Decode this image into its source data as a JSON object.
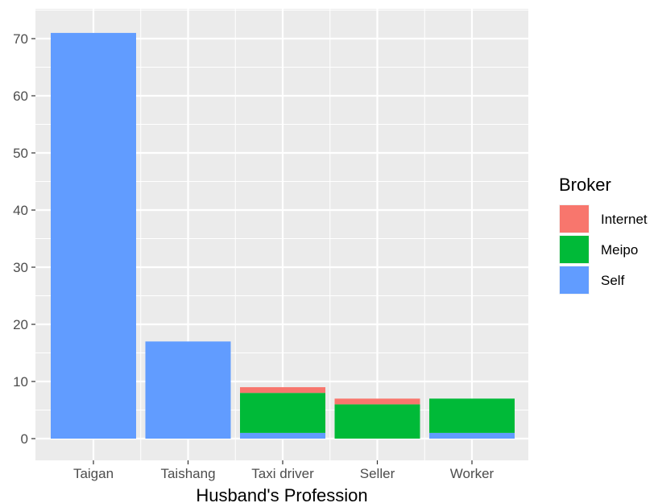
{
  "chart_data": {
    "type": "bar",
    "stacked": true,
    "xlabel": "Husband's Profession",
    "ylabel": "",
    "ylim": [
      0,
      75
    ],
    "yticks": [
      0,
      10,
      20,
      30,
      40,
      50,
      60,
      70
    ],
    "categories": [
      "Taigan",
      "Taishang",
      "Taxi driver",
      "Seller",
      "Worker"
    ],
    "series": [
      {
        "name": "Self",
        "color": "#619CFF",
        "values": [
          71,
          17,
          1,
          0,
          1
        ]
      },
      {
        "name": "Meipo",
        "color": "#00BA38",
        "values": [
          0,
          0,
          7,
          6,
          6
        ]
      },
      {
        "name": "Internet",
        "color": "#F8766D",
        "values": [
          0,
          0,
          1,
          1,
          0
        ]
      }
    ],
    "legend": {
      "title": "Broker",
      "position": "right",
      "items": [
        "Internet",
        "Meipo",
        "Self"
      ]
    },
    "grid": true,
    "panel_background": "#EBEBEB",
    "grid_color": "#FFFFFF"
  }
}
